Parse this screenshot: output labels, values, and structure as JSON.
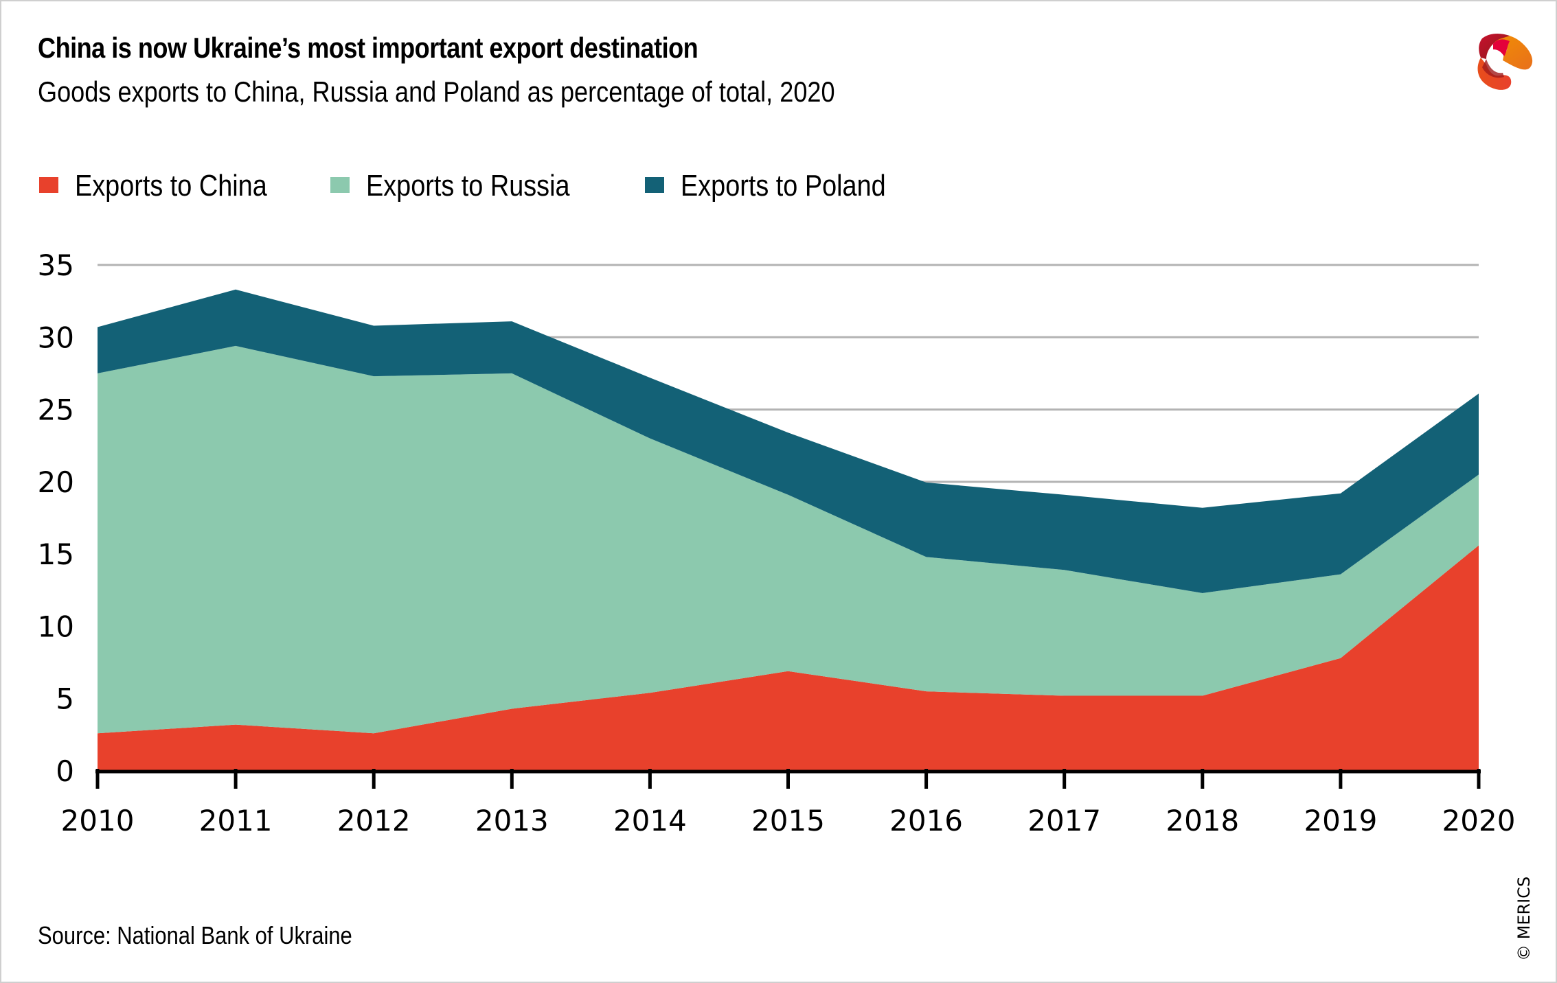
{
  "header": {
    "title": "China is now Ukraine’s most important export destination",
    "subtitle": "Goods exports to China, Russia and Poland as percentage of total, 2020"
  },
  "footer": {
    "source": "Source: National Bank of Ukraine",
    "copyright": "© MERICS"
  },
  "logo": {
    "icon": "merics-logo-icon",
    "colors": [
      "#c8102e",
      "#e4003a",
      "#f39200",
      "#e84e1b"
    ]
  },
  "chart_data": {
    "type": "area",
    "stacked": true,
    "title": "China is now Ukraine’s most important export destination",
    "subtitle": "Goods exports to China, Russia and Poland as percentage of total, 2020",
    "xlabel": "",
    "ylabel": "",
    "x": [
      "2010",
      "2011",
      "2012",
      "2013",
      "2014",
      "2015",
      "2016",
      "2017",
      "2018",
      "2019",
      "2020"
    ],
    "ylim": [
      0,
      35
    ],
    "yticks": [
      0,
      5,
      10,
      15,
      20,
      25,
      30,
      35
    ],
    "grid": true,
    "legend_position": "top-left",
    "series": [
      {
        "name": "Exports to China",
        "color": "#e8412c",
        "values": [
          2.6,
          3.2,
          2.6,
          4.3,
          5.4,
          6.9,
          5.5,
          5.2,
          5.2,
          7.8,
          15.6
        ]
      },
      {
        "name": "Exports to Russia",
        "color": "#8cc9ae",
        "values": [
          24.9,
          26.2,
          24.7,
          23.2,
          17.6,
          12.2,
          9.3,
          8.7,
          7.1,
          5.8,
          4.9
        ]
      },
      {
        "name": "Exports to Poland",
        "color": "#136176",
        "values": [
          3.2,
          3.9,
          3.5,
          3.6,
          4.2,
          4.3,
          5.15,
          5.2,
          5.9,
          5.6,
          5.6
        ]
      }
    ]
  }
}
